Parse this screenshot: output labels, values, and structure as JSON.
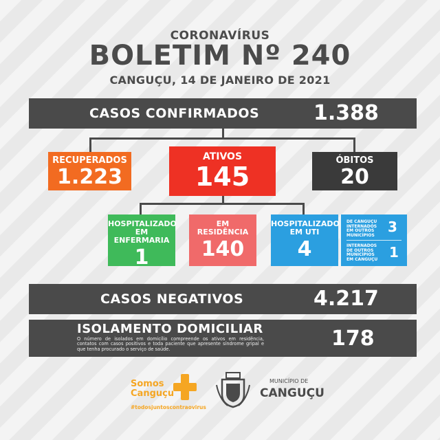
{
  "header": {
    "kicker": "CORONAVÍRUS",
    "title": "BOLETIM Nº 240",
    "date": "CANGUÇU, 14 DE JANEIRO DE 2021"
  },
  "confirmed": {
    "label": "CASOS CONFIRMADOS",
    "value": "1.388"
  },
  "recovered": {
    "label": "RECUPERADOS",
    "value": "1.223",
    "color": "#f26b21"
  },
  "active": {
    "label": "ATIVOS",
    "value": "145",
    "color": "#ee3124"
  },
  "deaths": {
    "label": "ÓBITOS",
    "value": "20",
    "color": "#3a3a3a"
  },
  "ward": {
    "label_line1": "HOSPITALIZADO",
    "label_line2": "EM ENFERMARIA",
    "value": "1",
    "color": "#3fba5a"
  },
  "home": {
    "label_line1": "EM",
    "label_line2": "RESIDÊNCIA",
    "value": "140",
    "color": "#f06a6a"
  },
  "icu": {
    "label_line1": "HOSPITALIZADO",
    "label_line2": "EM UTI",
    "value": "4",
    "color": "#2b9fe0",
    "sub1": {
      "line1": "DE CANGUÇU",
      "line2": "INTERNADOS",
      "line3": "EM OUTROS",
      "line4": "MUNICÍPIOS",
      "value": "3"
    },
    "sub2": {
      "line1": "INTERNADOS",
      "line2": "DE OUTROS",
      "line3": "MUNICÍPIOS",
      "line4": "EM CANGUÇU",
      "value": "1"
    }
  },
  "negatives": {
    "label": "CASOS NEGATIVOS",
    "value": "4.217"
  },
  "isolation": {
    "label": "ISOLAMENTO DOMICILIAR",
    "value": "178",
    "note": "O número de isolados em domicílio compreende os ativos em residência, contatos com casos positivos e toda paciente que apresente síndrome gripal e que tenha procurado o serviço de saúde."
  },
  "footer": {
    "campaign_line1": "Somos",
    "campaign_line2": "Canguçu",
    "hashtag": "#todosjuntoscontraovirus",
    "municipality_small": "MUNICÍPIO DE",
    "municipality_name": "CANGUÇU"
  }
}
